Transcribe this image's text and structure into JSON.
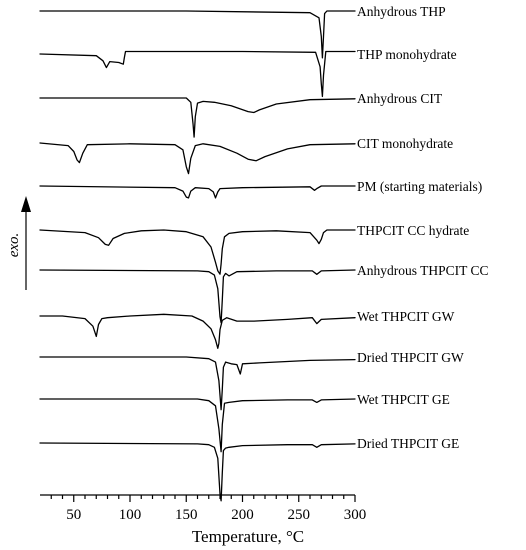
{
  "chart_data": {
    "type": "line",
    "title": "",
    "xlabel": "Temperature, °C",
    "ylabel": "exo.",
    "xlim": [
      20,
      300
    ],
    "x_ticks": [
      50,
      100,
      150,
      200,
      250,
      300
    ],
    "grid": false,
    "legend": "none; each curve is labelled at its right end",
    "series": [
      {
        "name": "Anhydrous THP",
        "x": [
          20,
          150,
          260,
          268,
          270,
          271,
          272,
          273,
          275,
          300
        ],
        "y": [
          0,
          0,
          -0.2,
          -0.8,
          -3,
          -5.5,
          -3,
          -0.3,
          0,
          0
        ]
      },
      {
        "name": "THP monohydrate",
        "x": [
          20,
          70,
          76,
          79,
          82,
          90,
          94,
          95,
          96,
          100,
          200,
          265,
          269,
          270,
          271,
          272,
          274,
          300
        ],
        "y": [
          0,
          -0.2,
          -0.8,
          -1.6,
          -0.9,
          -1,
          -1.2,
          -0.4,
          0.3,
          0.3,
          0.3,
          0.2,
          -1.5,
          -3.5,
          -5,
          -2.5,
          0.3,
          0.3
        ]
      },
      {
        "name": "Anhydrous CIT",
        "x": [
          20,
          150,
          154,
          156,
          157,
          158,
          160,
          165,
          175,
          190,
          205,
          210,
          215,
          230,
          260,
          300
        ],
        "y": [
          0,
          0,
          -0.5,
          -3,
          -4.6,
          -2.2,
          -0.6,
          -0.4,
          -0.5,
          -0.9,
          -1.6,
          -1.7,
          -1.4,
          -0.7,
          -0.2,
          -0.1
        ]
      },
      {
        "name": "CIT monohydrate",
        "x": [
          20,
          45,
          50,
          53,
          55,
          58,
          62,
          100,
          140,
          147,
          150,
          152,
          154,
          158,
          165,
          180,
          195,
          205,
          212,
          220,
          240,
          260,
          300
        ],
        "y": [
          0,
          -0.3,
          -1,
          -2,
          -2.3,
          -1.2,
          -0.2,
          -0.1,
          -0.2,
          -0.8,
          -2.8,
          -3.6,
          -1.8,
          -0.3,
          -0.1,
          -0.4,
          -1.2,
          -1.9,
          -2.1,
          -1.6,
          -0.7,
          -0.2,
          -0.1
        ]
      },
      {
        "name": "PM (starting materials)",
        "x": [
          20,
          140,
          147,
          150,
          152,
          154,
          158,
          170,
          174,
          176,
          178,
          180,
          200,
          260,
          264,
          266,
          270,
          300
        ],
        "y": [
          0,
          -0.2,
          -0.6,
          -1.3,
          -1.4,
          -0.6,
          -0.2,
          -0.3,
          -0.7,
          -1.4,
          -0.7,
          -0.3,
          -0.2,
          -0.1,
          -0.5,
          -0.3,
          0,
          0
        ]
      },
      {
        "name": "THPCIT CC hydrate",
        "x": [
          20,
          60,
          72,
          78,
          81,
          85,
          95,
          110,
          130,
          150,
          165,
          172,
          176,
          178,
          180,
          181,
          182,
          184,
          188,
          200,
          230,
          260,
          266,
          268,
          270,
          272,
          275,
          300
        ],
        "y": [
          0,
          -0.3,
          -0.9,
          -1.7,
          -1.8,
          -1,
          -0.4,
          -0.1,
          0,
          -0.2,
          -0.8,
          -2,
          -3.8,
          -4.8,
          -5.2,
          -4,
          -2.2,
          -0.8,
          -0.4,
          -0.2,
          -0.1,
          -0.3,
          -1.2,
          -1.6,
          -1.1,
          -0.3,
          0,
          0
        ]
      },
      {
        "name": "Anhydrous THPCIT CC",
        "x": [
          20,
          160,
          170,
          175,
          178,
          180,
          181,
          182,
          183,
          185,
          188,
          195,
          230,
          262,
          266,
          270,
          300
        ],
        "y": [
          0,
          -0.1,
          -0.2,
          -0.6,
          -2.2,
          -5.5,
          -6.2,
          -3.5,
          -0.8,
          -0.4,
          -0.7,
          -0.2,
          -0.1,
          -0.1,
          -0.5,
          -0.1,
          0
        ]
      },
      {
        "name": "Wet THPCIT GW",
        "x": [
          20,
          40,
          60,
          67,
          70,
          72,
          75,
          80,
          100,
          130,
          155,
          165,
          172,
          176,
          178,
          179,
          180,
          182,
          186,
          195,
          210,
          240,
          262,
          266,
          270,
          300
        ],
        "y": [
          0,
          0,
          -0.3,
          -1.2,
          -2.4,
          -1,
          -0.3,
          -0.2,
          0,
          0.2,
          0,
          -0.6,
          -1.5,
          -2.8,
          -3.8,
          -3.2,
          -1.6,
          -0.5,
          -0.2,
          -0.6,
          -0.6,
          -0.4,
          -0.2,
          -0.9,
          -0.4,
          -0.2
        ]
      },
      {
        "name": "Dried THPCIT GW",
        "x": [
          20,
          150,
          170,
          176,
          179,
          181,
          182,
          183,
          185,
          190,
          195,
          198,
          200,
          215,
          260,
          300
        ],
        "y": [
          0,
          0,
          -0.2,
          -0.6,
          -2.8,
          -6.2,
          -3.8,
          -1.2,
          -0.6,
          -0.8,
          -0.9,
          -2,
          -0.8,
          -0.7,
          -0.4,
          -0.3
        ]
      },
      {
        "name": "Wet THPCIT GE",
        "x": [
          20,
          160,
          170,
          176,
          179,
          181,
          182,
          184,
          188,
          200,
          240,
          262,
          266,
          270,
          300
        ],
        "y": [
          0,
          0,
          -0.2,
          -0.8,
          -3.5,
          -6.2,
          -3,
          -0.5,
          -0.4,
          -0.2,
          -0.1,
          -0.1,
          -0.4,
          -0.1,
          0
        ]
      },
      {
        "name": "Dried THPCIT GE",
        "x": [
          20,
          160,
          170,
          175,
          178,
          180,
          181,
          182,
          183,
          185,
          188,
          200,
          240,
          262,
          266,
          270,
          300
        ],
        "y": [
          0,
          -0.1,
          -0.2,
          -0.5,
          -1.8,
          -6,
          -6.8,
          -3.5,
          -0.9,
          -0.6,
          -0.5,
          -0.3,
          -0.2,
          -0.2,
          -0.5,
          -0.2,
          -0.1
        ]
      }
    ]
  }
}
